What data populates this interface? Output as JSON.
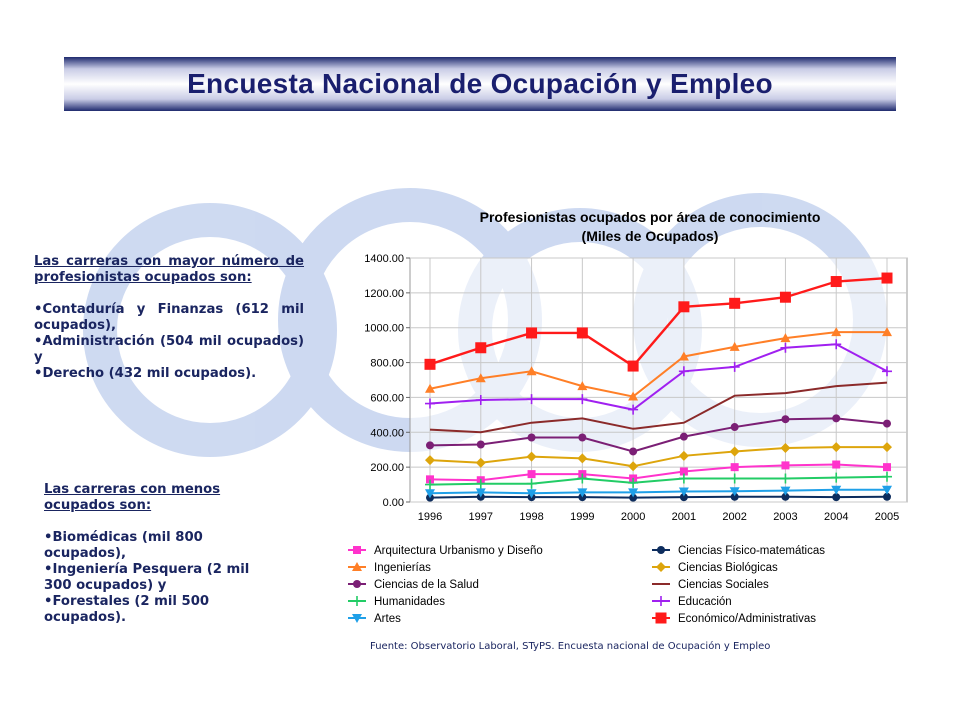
{
  "page": {
    "title": "Encuesta Nacional de Ocupación y Empleo"
  },
  "left_text": {
    "top": {
      "heading": "Las carreras con mayor número de profesionistas ocupados son:",
      "items": [
        "Contaduría y Finanzas (612 mil ocupados),",
        "Administración (504 mil ocupados) y",
        "Derecho (432 mil ocupados)."
      ]
    },
    "bottom": {
      "heading": "Las carreras con menos ocupados son:",
      "items": [
        "Biomédicas (mil 800 ocupados),",
        "Ingeniería Pesquera (2 mil 300 ocupados) y",
        "Forestales (2 mil 500 ocupados)."
      ]
    }
  },
  "source_note": "Fuente: Observatorio Laboral, STyPS. Encuesta nacional de Ocupación y Empleo",
  "chart_data": {
    "type": "line",
    "title": "Profesionistas ocupados por área de conocimiento",
    "subtitle": "(Miles de Ocupados)",
    "x": [
      "1996",
      "1997",
      "1998",
      "1999",
      "2000",
      "2001",
      "2002",
      "2003",
      "2004",
      "2005"
    ],
    "ylim": [
      0,
      1400
    ],
    "yticks": [
      "0.00",
      "200.00",
      "400.00",
      "600.00",
      "800.00",
      "1000.00",
      "1200.00",
      "1400.00"
    ],
    "grid": true,
    "legend_position": "bottom",
    "series": [
      {
        "name": "Arquitectura Urbanismo y Diseño",
        "color": "#ff33cc",
        "marker": "square",
        "values": [
          130,
          125,
          160,
          160,
          135,
          175,
          200,
          210,
          215,
          200
        ]
      },
      {
        "name": "Ciencias Físico-matemáticas",
        "color": "#0d2d5e",
        "marker": "circle",
        "values": [
          25,
          30,
          28,
          28,
          25,
          28,
          30,
          30,
          28,
          30
        ]
      },
      {
        "name": "Ingenierías",
        "color": "#ff7f27",
        "marker": "triangle",
        "values": [
          650,
          710,
          750,
          665,
          605,
          835,
          890,
          940,
          975,
          975
        ]
      },
      {
        "name": "Ciencias Biológicas",
        "color": "#dda50c",
        "marker": "diamond",
        "values": [
          240,
          225,
          260,
          250,
          205,
          265,
          290,
          310,
          315,
          315
        ]
      },
      {
        "name": "Ciencias de la Salud",
        "color": "#7b1f75",
        "marker": "circle",
        "values": [
          325,
          330,
          370,
          370,
          290,
          375,
          430,
          475,
          480,
          450
        ]
      },
      {
        "name": "Ciencias Sociales",
        "color": "#8b2a2a",
        "marker": "none",
        "values": [
          415,
          400,
          455,
          480,
          420,
          455,
          610,
          625,
          665,
          685
        ]
      },
      {
        "name": "Humanidades",
        "color": "#22cc66",
        "marker": "plus",
        "values": [
          100,
          105,
          105,
          135,
          110,
          135,
          135,
          135,
          140,
          145
        ]
      },
      {
        "name": "Educación",
        "color": "#a020f0",
        "marker": "plus",
        "values": [
          565,
          585,
          590,
          590,
          530,
          750,
          775,
          885,
          905,
          750
        ]
      },
      {
        "name": "Artes",
        "color": "#1fa0e8",
        "marker": "triangle-down",
        "values": [
          50,
          55,
          50,
          55,
          55,
          60,
          62,
          65,
          70,
          70
        ]
      },
      {
        "name": "Económico/Administrativas",
        "color": "#ff1a1a",
        "marker": "bigsquare",
        "values": [
          790,
          885,
          970,
          970,
          780,
          1120,
          1140,
          1175,
          1265,
          1285
        ]
      }
    ]
  }
}
